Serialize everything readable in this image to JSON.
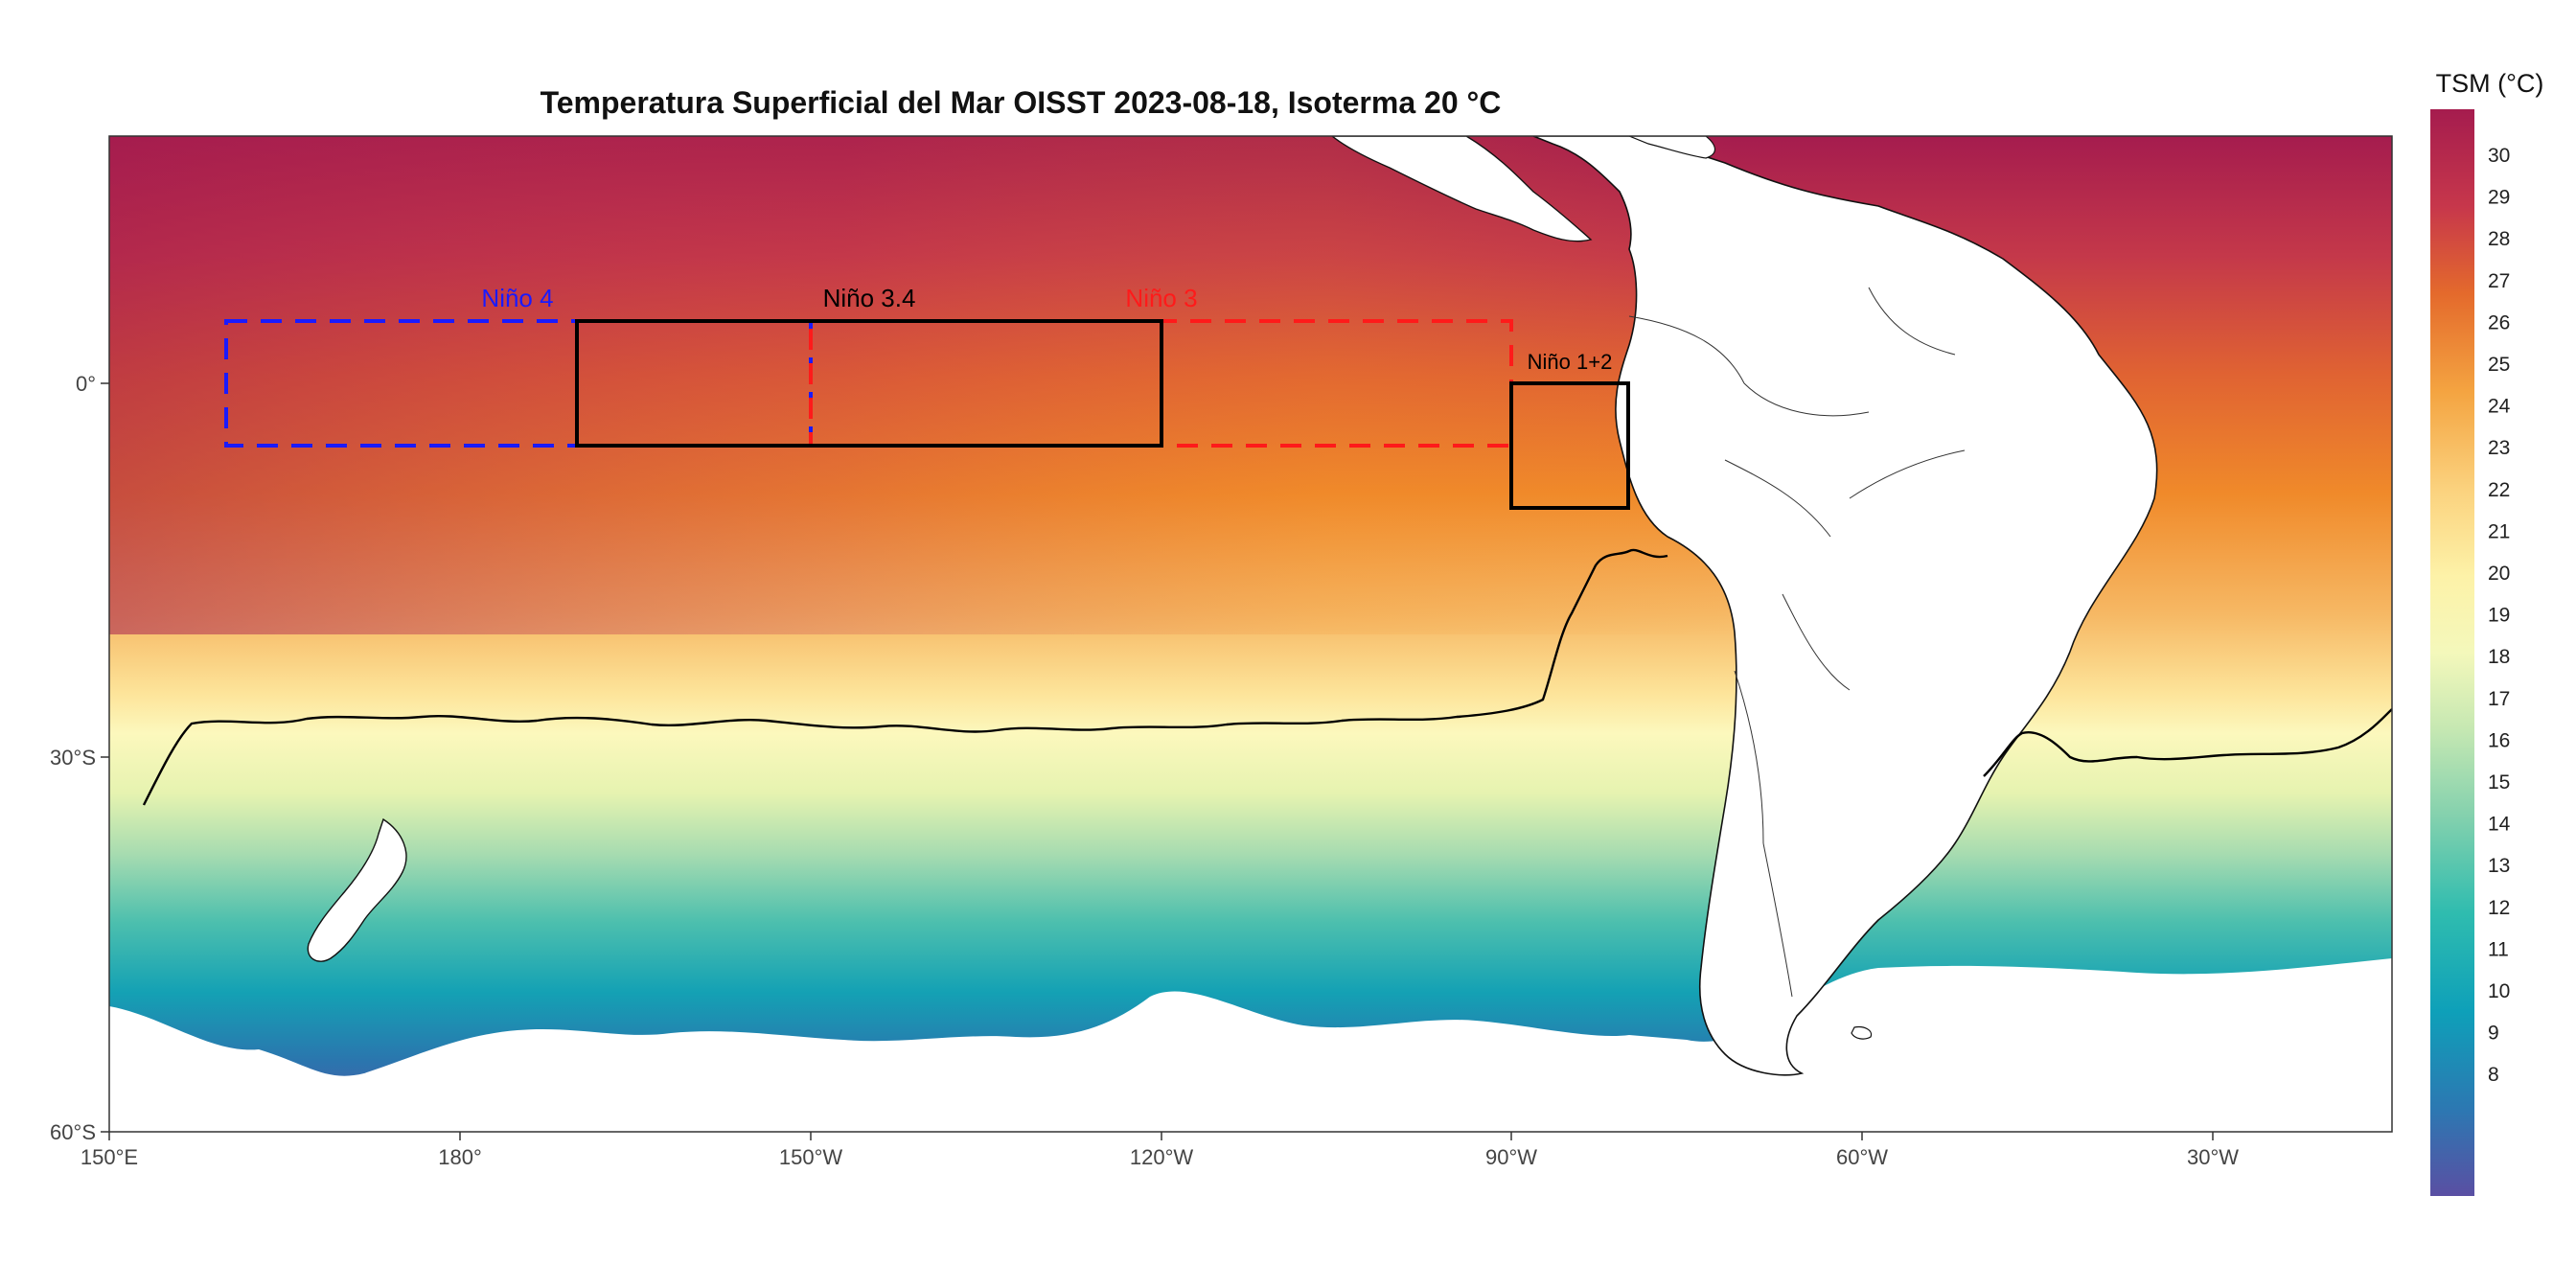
{
  "title": "Temperatura Superficial del Mar OISST 2023-08-18, Isoterma 20 °C",
  "legend": {
    "title": "TSM (°C)",
    "labels": [
      "30",
      "29",
      "28",
      "27",
      "26",
      "25",
      "24",
      "23",
      "22",
      "21",
      "20",
      "19",
      "18",
      "17",
      "16",
      "15",
      "14",
      "13",
      "12",
      "11",
      "10",
      "9",
      "8"
    ]
  },
  "axes": {
    "x_ticks": [
      "150°E",
      "180°",
      "150°W",
      "120°W",
      "90°W",
      "60°W",
      "30°W"
    ],
    "y_ticks": [
      "0°",
      "30°S",
      "60°S"
    ]
  },
  "regions": {
    "nino4": {
      "label": "Niño 4",
      "color": "#1a1aff"
    },
    "nino34": {
      "label": "Niño 3.4",
      "color": "#000000"
    },
    "nino3": {
      "label": "Niño 3",
      "color": "#ff1a1a"
    },
    "nino12": {
      "label": "Niño 1+2",
      "color": "#000000"
    }
  },
  "colors": {
    "scale_hot": "#a8204e",
    "scale_mid": "#fcf8b6",
    "scale_cold": "#5b4fa4"
  },
  "map_data": {
    "extent": {
      "lon_min": 150,
      "lon_max": 345,
      "lat_min": -60,
      "lat_max": 20
    },
    "isotherm_c": 20,
    "region_boxes": {
      "nino4": {
        "lon": [
          160,
          210
        ],
        "lat": [
          -5,
          5
        ]
      },
      "nino34": {
        "lon": [
          190,
          240
        ],
        "lat": [
          -5,
          5
        ]
      },
      "nino3": {
        "lon": [
          210,
          270
        ],
        "lat": [
          -5,
          5
        ]
      },
      "nino12": {
        "lon": [
          270,
          280
        ],
        "lat": [
          -10,
          0
        ]
      }
    }
  }
}
